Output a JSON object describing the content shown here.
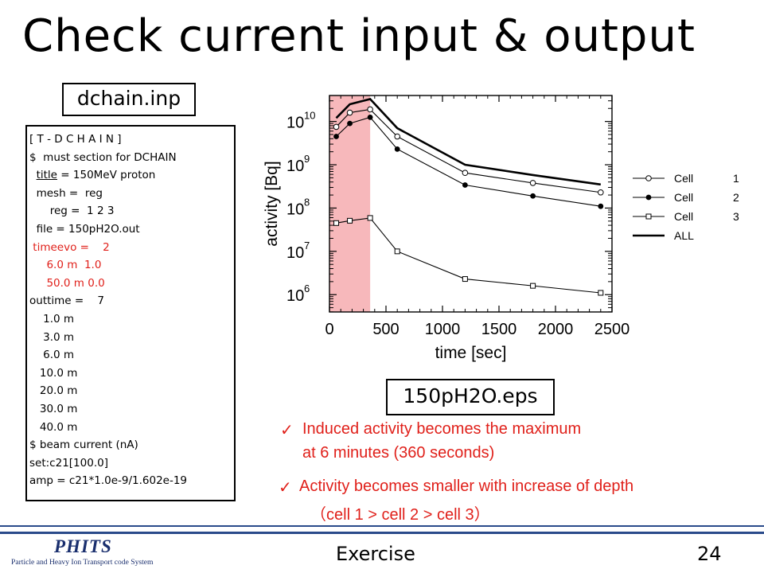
{
  "slide": {
    "title": "Check current input & output",
    "input_label": "dchain.inp",
    "output_label": "150pH2O.eps"
  },
  "code_lines": [
    {
      "text": "[ T - D C H A I N ]",
      "color": "black"
    },
    {
      "text": "$  must section for DCHAIN",
      "color": "black"
    },
    {
      "pre": "  ",
      "key": "title",
      "rest": " = 150MeV proton",
      "color": "black"
    },
    {
      "text": "  mesh =  reg",
      "color": "black"
    },
    {
      "text": "      reg =  1 2 3",
      "color": "black"
    },
    {
      "text": "  file = 150pH2O.out",
      "color": "black"
    },
    {
      "text": " timeevo =    2",
      "color": "red"
    },
    {
      "text": "     6.0 m  1.0",
      "color": "red"
    },
    {
      "text": "     50.0 m 0.0",
      "color": "red"
    },
    {
      "text": "outtime =    7",
      "color": "black"
    },
    {
      "text": "    1.0 m",
      "color": "black"
    },
    {
      "text": "    3.0 m",
      "color": "black"
    },
    {
      "text": "    6.0 m",
      "color": "black"
    },
    {
      "text": "   10.0 m",
      "color": "black"
    },
    {
      "text": "   20.0 m",
      "color": "black"
    },
    {
      "text": "   30.0 m",
      "color": "black"
    },
    {
      "text": "   40.0 m",
      "color": "black"
    },
    {
      "text": "$ beam current (nA)",
      "color": "black"
    },
    {
      "text": "set:c21[100.0]",
      "color": "black"
    },
    {
      "text": "amp = c21*1.0e-9/1.602e-19",
      "color": "black"
    }
  ],
  "chart_data": {
    "type": "line",
    "xlabel": "time [sec]",
    "ylabel": "activity [Bq]",
    "xlim": [
      0,
      2500
    ],
    "ylim_log10": [
      5.6,
      10.6
    ],
    "y_scale": "log",
    "x_ticks": [
      0,
      500,
      1000,
      1500,
      2000,
      2500
    ],
    "y_ticks": [
      {
        "exp": 6
      },
      {
        "exp": 7
      },
      {
        "exp": 8
      },
      {
        "exp": 9
      },
      {
        "exp": 10
      }
    ],
    "y_tick_base": "10",
    "irradiation_band": {
      "x_from": 0,
      "x_to": 360,
      "color": "#f7b8bb"
    },
    "legend_position": "right",
    "series": [
      {
        "name": "Cell",
        "num": "1",
        "marker": "open-circle",
        "x": [
          60,
          180,
          360,
          600,
          1200,
          1800,
          2400
        ],
        "y": [
          7500000000.0,
          16000000000.0,
          19000000000.0,
          4500000000.0,
          650000000.0,
          380000000.0,
          230000000.0
        ]
      },
      {
        "name": "Cell",
        "num": "2",
        "marker": "filled-circle",
        "x": [
          60,
          180,
          360,
          600,
          1200,
          1800,
          2400
        ],
        "y": [
          4500000000.0,
          9000000000.0,
          12500000000.0,
          2300000000.0,
          340000000.0,
          190000000.0,
          110000000.0
        ]
      },
      {
        "name": "Cell",
        "num": "3",
        "marker": "open-square",
        "x": [
          60,
          180,
          360,
          600,
          1200,
          1800,
          2400
        ],
        "y": [
          45000000.0,
          51000000.0,
          59000000.0,
          10000000.0,
          2300000.0,
          1600000.0,
          1100000.0
        ]
      },
      {
        "name": "ALL",
        "num": "",
        "marker": "none",
        "x": [
          60,
          180,
          360,
          600,
          1200,
          1800,
          2400
        ],
        "y": [
          12000000000.0,
          25000000000.0,
          33000000000.0,
          7000000000.0,
          1000000000.0,
          580000000.0,
          350000000.0
        ]
      }
    ]
  },
  "bullets": [
    {
      "line1": "Induced activity becomes the maximum",
      "line2": "at 6 minutes (360 seconds)"
    },
    {
      "line1": "Activity becomes smaller with increase of depth",
      "line2": "（cell 1 > cell 2 > cell 3）"
    }
  ],
  "footer": {
    "logo_main": "PHITS",
    "logo_sub": "Particle and Heavy Ion Transport code System",
    "section": "Exercise",
    "page": "24",
    "accent": "#2a4a8a"
  },
  "colors": {
    "red_text": "#e0201a",
    "band": "#f7b8bb"
  }
}
